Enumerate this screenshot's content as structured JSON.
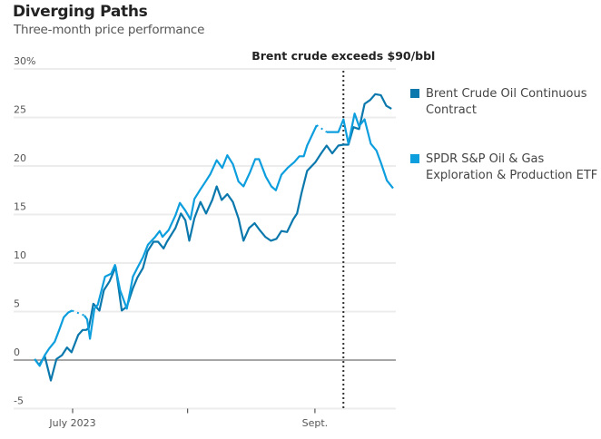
{
  "chart_data": {
    "type": "line",
    "title": "Diverging Paths",
    "subtitle": "Three-month price performance",
    "xlabel": "",
    "ylabel": "",
    "x_unit": "trading days relative to July 3, 2023",
    "xlim": [
      -7,
      57.5
    ],
    "ylim": [
      -5,
      30
    ],
    "y_ticks": [
      {
        "value": 30,
        "label": "30%"
      },
      {
        "value": 25,
        "label": "25"
      },
      {
        "value": 20,
        "label": "20"
      },
      {
        "value": 15,
        "label": "15"
      },
      {
        "value": 10,
        "label": "10"
      },
      {
        "value": 5,
        "label": "5"
      },
      {
        "value": 0,
        "label": "0"
      },
      {
        "value": -5,
        "label": "-5"
      }
    ],
    "x_ticks": [
      {
        "value": 0,
        "label": "July 2023"
      },
      {
        "value": 20.6,
        "label": ""
      },
      {
        "value": 43.4,
        "label": "Sept."
      }
    ],
    "grid": true,
    "annotation": {
      "label": "Brent crude exceeds $90/bbl",
      "x": 48.5,
      "style": "dotted-vertical"
    },
    "legend_position": "right",
    "series": [
      {
        "name": "Brent Crude Oil Continuous Contract",
        "color": "#0a78ac",
        "points": [
          [
            -6.8,
            0.1
          ],
          [
            -6.0,
            -0.5
          ],
          [
            -5.0,
            0.4
          ],
          [
            -3.9,
            -2.1
          ],
          [
            -2.9,
            0.1
          ],
          [
            -1.9,
            0.5
          ],
          [
            -1.0,
            1.3
          ],
          [
            -0.2,
            0.8
          ],
          [
            1.0,
            2.6
          ],
          [
            1.8,
            3.1
          ],
          [
            2.4,
            3.1
          ],
          [
            2.9,
            3.3
          ],
          [
            3.7,
            5.8
          ],
          [
            4.8,
            5.1
          ],
          [
            5.6,
            7.2
          ],
          [
            6.6,
            8.1
          ],
          [
            7.7,
            9.6
          ],
          [
            8.8,
            5.1
          ],
          [
            9.7,
            5.5
          ],
          [
            10.8,
            7.4
          ],
          [
            11.6,
            8.5
          ],
          [
            12.6,
            9.5
          ],
          [
            13.4,
            11.2
          ],
          [
            14.5,
            12.2
          ],
          [
            15.3,
            12.2
          ],
          [
            16.3,
            11.5
          ],
          [
            16.9,
            12.2
          ],
          [
            18.4,
            13.6
          ],
          [
            19.4,
            15.1
          ],
          [
            20.2,
            14.4
          ],
          [
            20.9,
            12.3
          ],
          [
            21.8,
            14.6
          ],
          [
            22.9,
            16.3
          ],
          [
            23.9,
            15.1
          ],
          [
            25.0,
            16.5
          ],
          [
            25.8,
            17.9
          ],
          [
            26.7,
            16.5
          ],
          [
            27.7,
            17.1
          ],
          [
            28.7,
            16.3
          ],
          [
            29.7,
            14.6
          ],
          [
            30.6,
            12.3
          ],
          [
            31.6,
            13.6
          ],
          [
            32.6,
            14.1
          ],
          [
            33.5,
            13.4
          ],
          [
            34.5,
            12.7
          ],
          [
            35.5,
            12.3
          ],
          [
            36.5,
            12.5
          ],
          [
            37.4,
            13.3
          ],
          [
            38.4,
            13.2
          ],
          [
            39.5,
            14.5
          ],
          [
            40.2,
            15.1
          ],
          [
            41.0,
            17.2
          ],
          [
            42.0,
            19.5
          ],
          [
            43.5,
            20.4
          ],
          [
            44.5,
            21.3
          ],
          [
            45.5,
            22.1
          ],
          [
            46.5,
            21.3
          ],
          [
            47.6,
            22.1
          ],
          [
            48.5,
            22.2
          ],
          [
            49.4,
            22.2
          ],
          [
            50.3,
            24.0
          ],
          [
            51.3,
            23.8
          ],
          [
            52.3,
            26.4
          ],
          [
            53.3,
            26.8
          ],
          [
            54.2,
            27.4
          ],
          [
            55.2,
            27.3
          ],
          [
            56.2,
            26.2
          ],
          [
            57.1,
            25.9
          ]
        ]
      },
      {
        "name": "SPDR S&P Oil & Gas Exploration & Production ETF",
        "color": "#0d9ede",
        "gaps": [
          [
            -0.1,
            2.1
          ],
          [
            43.7,
            45.5
          ]
        ],
        "points": [
          [
            -6.8,
            0.1
          ],
          [
            -5.9,
            -0.6
          ],
          [
            -5.0,
            0.5
          ],
          [
            -4.2,
            1.2
          ],
          [
            -3.2,
            1.9
          ],
          [
            -2.4,
            3.1
          ],
          [
            -1.6,
            4.4
          ],
          [
            -0.8,
            4.9
          ],
          [
            -0.1,
            5.1
          ],
          [
            2.1,
            4.6
          ],
          [
            2.6,
            4.2
          ],
          [
            3.1,
            2.2
          ],
          [
            3.9,
            5.3
          ],
          [
            4.5,
            5.7
          ],
          [
            5.8,
            8.6
          ],
          [
            6.9,
            8.9
          ],
          [
            7.6,
            9.8
          ],
          [
            8.5,
            7.2
          ],
          [
            9.7,
            5.3
          ],
          [
            10.8,
            8.6
          ],
          [
            11.6,
            9.5
          ],
          [
            12.6,
            10.6
          ],
          [
            13.5,
            11.9
          ],
          [
            14.8,
            12.7
          ],
          [
            15.6,
            13.3
          ],
          [
            16.1,
            12.7
          ],
          [
            17.2,
            13.4
          ],
          [
            18.4,
            14.9
          ],
          [
            19.2,
            16.2
          ],
          [
            20.2,
            15.4
          ],
          [
            21.1,
            14.5
          ],
          [
            21.8,
            16.6
          ],
          [
            22.9,
            17.6
          ],
          [
            23.7,
            18.3
          ],
          [
            24.7,
            19.2
          ],
          [
            25.8,
            20.6
          ],
          [
            26.8,
            19.8
          ],
          [
            27.7,
            21.1
          ],
          [
            28.7,
            20.2
          ],
          [
            29.7,
            18.4
          ],
          [
            30.6,
            17.9
          ],
          [
            31.8,
            19.4
          ],
          [
            32.7,
            20.7
          ],
          [
            33.4,
            20.7
          ],
          [
            34.6,
            18.9
          ],
          [
            35.6,
            17.9
          ],
          [
            36.4,
            17.5
          ],
          [
            37.4,
            19.1
          ],
          [
            38.5,
            19.8
          ],
          [
            39.7,
            20.4
          ],
          [
            40.6,
            21.0
          ],
          [
            41.4,
            21.0
          ],
          [
            42.0,
            22.1
          ],
          [
            43.7,
            24.2
          ],
          [
            45.5,
            23.5
          ],
          [
            46.5,
            23.5
          ],
          [
            47.6,
            23.5
          ],
          [
            48.5,
            24.8
          ],
          [
            49.4,
            22.3
          ],
          [
            50.5,
            25.4
          ],
          [
            51.3,
            24.1
          ],
          [
            52.3,
            24.8
          ],
          [
            53.4,
            22.3
          ],
          [
            54.4,
            21.6
          ],
          [
            55.3,
            20.2
          ],
          [
            56.3,
            18.5
          ],
          [
            57.4,
            17.7
          ]
        ]
      }
    ]
  }
}
